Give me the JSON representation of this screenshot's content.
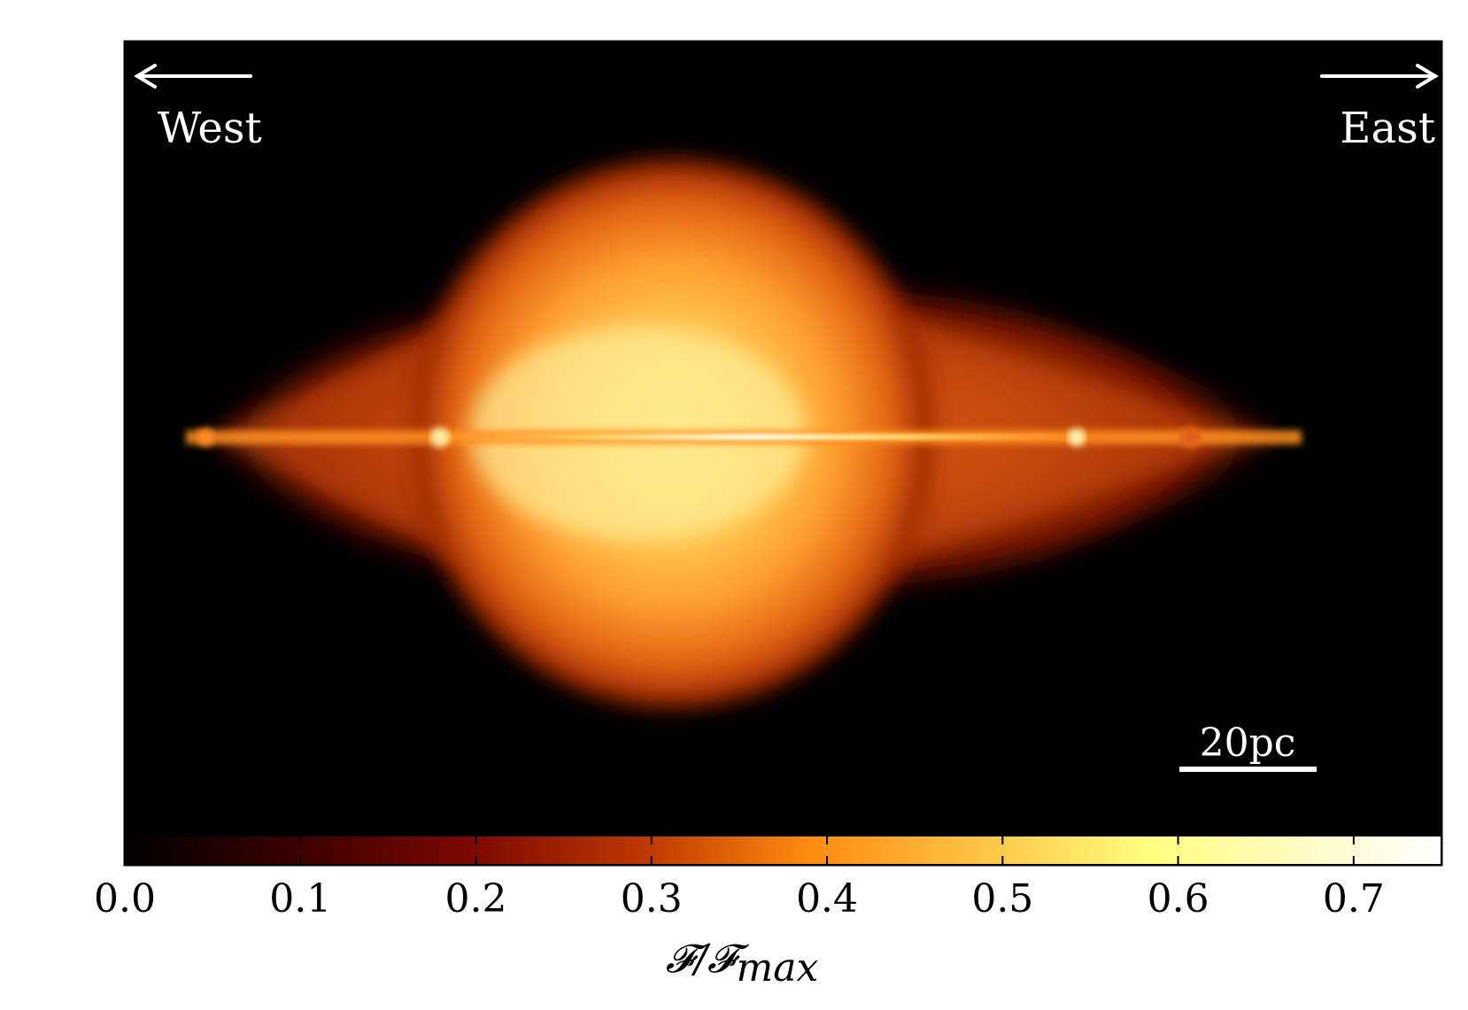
{
  "chart_data": {
    "type": "heatmap",
    "description_labels": {
      "west": "West",
      "east": "East",
      "scale_bar": "20pc"
    },
    "colorbar": {
      "label_main": "𝓕/𝓕",
      "label_sub": "max",
      "range": [
        0.0,
        0.75
      ],
      "ticks": [
        0.0,
        0.1,
        0.2,
        0.3,
        0.4,
        0.5,
        0.6,
        0.7
      ],
      "tick_labels": [
        "0.0",
        "0.1",
        "0.2",
        "0.3",
        "0.4",
        "0.5",
        "0.6",
        "0.7"
      ],
      "colormap": "afmhot",
      "colors": [
        "#000000",
        "#5a0000",
        "#a51e00",
        "#ff8000",
        "#ffd04a",
        "#ffff80",
        "#ffffff"
      ]
    },
    "image": {
      "background": "#000000",
      "peak_value": 0.75,
      "structure": "bipolar nebula with bright central equatorial line"
    }
  }
}
